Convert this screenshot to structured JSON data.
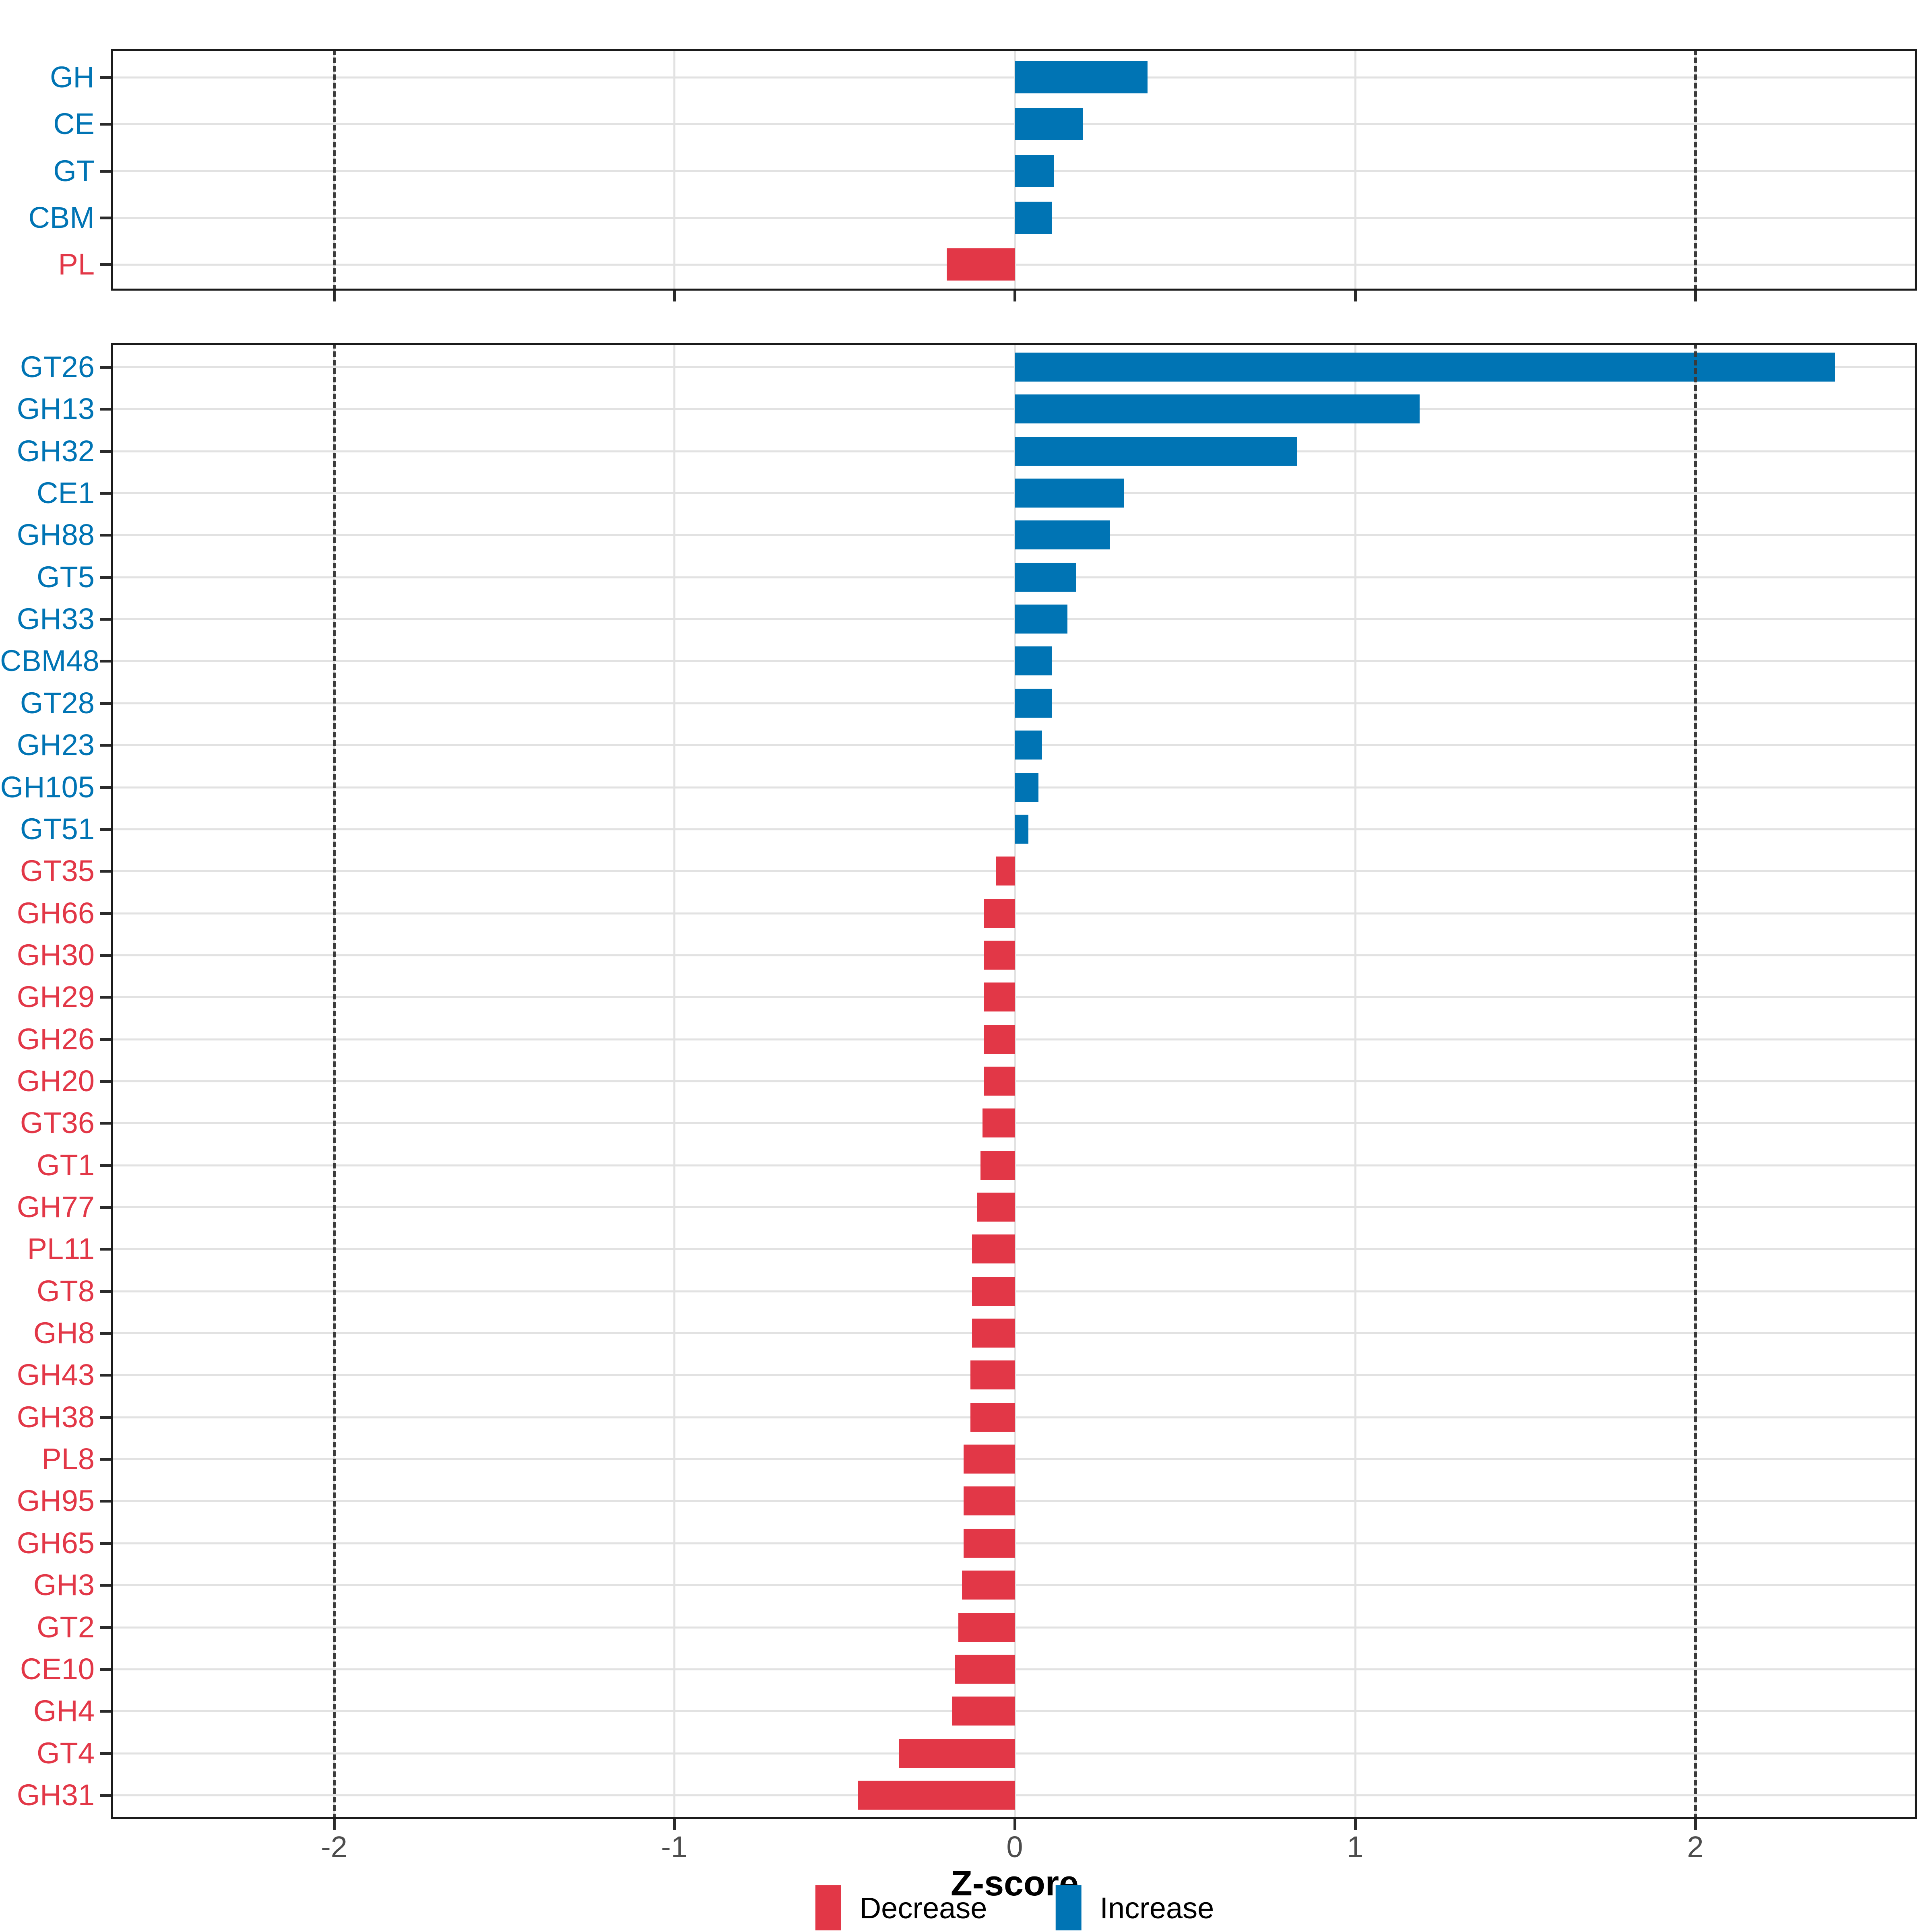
{
  "axis": {
    "xlabel": "Z-score",
    "x_tick_labels": [
      "-2",
      "-1",
      "0",
      "1",
      "2"
    ]
  },
  "legend": {
    "items": [
      {
        "label": "Decrease",
        "direction": "decrease",
        "color": "#e23747"
      },
      {
        "label": "Increase",
        "direction": "increase",
        "color": "#0074b4"
      }
    ]
  },
  "colors": {
    "increase_blue": "#0074b4",
    "decrease_red": "#e23747",
    "gridline": "#e2e2e2",
    "panel_border": "#1b1b1b",
    "tick_label_gray": "#4d4d4d",
    "dashed_line": "#3a3a3a"
  },
  "chart_data": [
    {
      "type": "bar",
      "orientation": "horizontal",
      "panel": "top",
      "title": "",
      "xlabel": "",
      "categories": [
        "GH",
        "CE",
        "GT",
        "CBM",
        "PL"
      ],
      "values": [
        0.39,
        0.2,
        0.115,
        0.11,
        -0.2
      ],
      "xlim": [
        -2.65,
        2.65
      ],
      "xticks": [
        -2,
        -1,
        0,
        1,
        2
      ],
      "x_tick_labels_shown": false,
      "dashed_reference_lines": [
        -2,
        2
      ],
      "grid": "major only, light gray",
      "legend_position": "none",
      "color_rule": "blue bars and labels for increase (value > 0), red for decrease (value < 0)"
    },
    {
      "type": "bar",
      "orientation": "horizontal",
      "panel": "bottom",
      "title": "",
      "xlabel": "Z-score",
      "categories": [
        "GT26",
        "GH13",
        "GH32",
        "CE1",
        "GH88",
        "GT5",
        "GH33",
        "CBM48",
        "GT28",
        "GH23",
        "GH105",
        "GT51",
        "GT35",
        "GH66",
        "GH30",
        "GH29",
        "GH26",
        "GH20",
        "GT36",
        "GT1",
        "GH77",
        "PL11",
        "GT8",
        "GH8",
        "GH43",
        "GH38",
        "PL8",
        "GH95",
        "GH65",
        "GH3",
        "GT2",
        "CE10",
        "GH4",
        "GT4",
        "GH31"
      ],
      "values": [
        2.41,
        1.19,
        0.83,
        0.32,
        0.28,
        0.18,
        0.155,
        0.11,
        0.11,
        0.08,
        0.07,
        0.04,
        -0.055,
        -0.09,
        -0.09,
        -0.09,
        -0.09,
        -0.09,
        -0.095,
        -0.1,
        -0.11,
        -0.125,
        -0.125,
        -0.125,
        -0.13,
        -0.13,
        -0.15,
        -0.15,
        -0.15,
        -0.155,
        -0.165,
        -0.175,
        -0.185,
        -0.34,
        -0.46
      ],
      "xlim": [
        -2.65,
        2.65
      ],
      "xticks": [
        -2,
        -1,
        0,
        1,
        2
      ],
      "x_tick_labels_shown": true,
      "dashed_reference_lines": [
        -2,
        2
      ],
      "grid": "major only, light gray",
      "legend_position": "bottom",
      "color_rule": "blue bars and labels for increase (value > 0), red for decrease (value < 0)"
    }
  ]
}
